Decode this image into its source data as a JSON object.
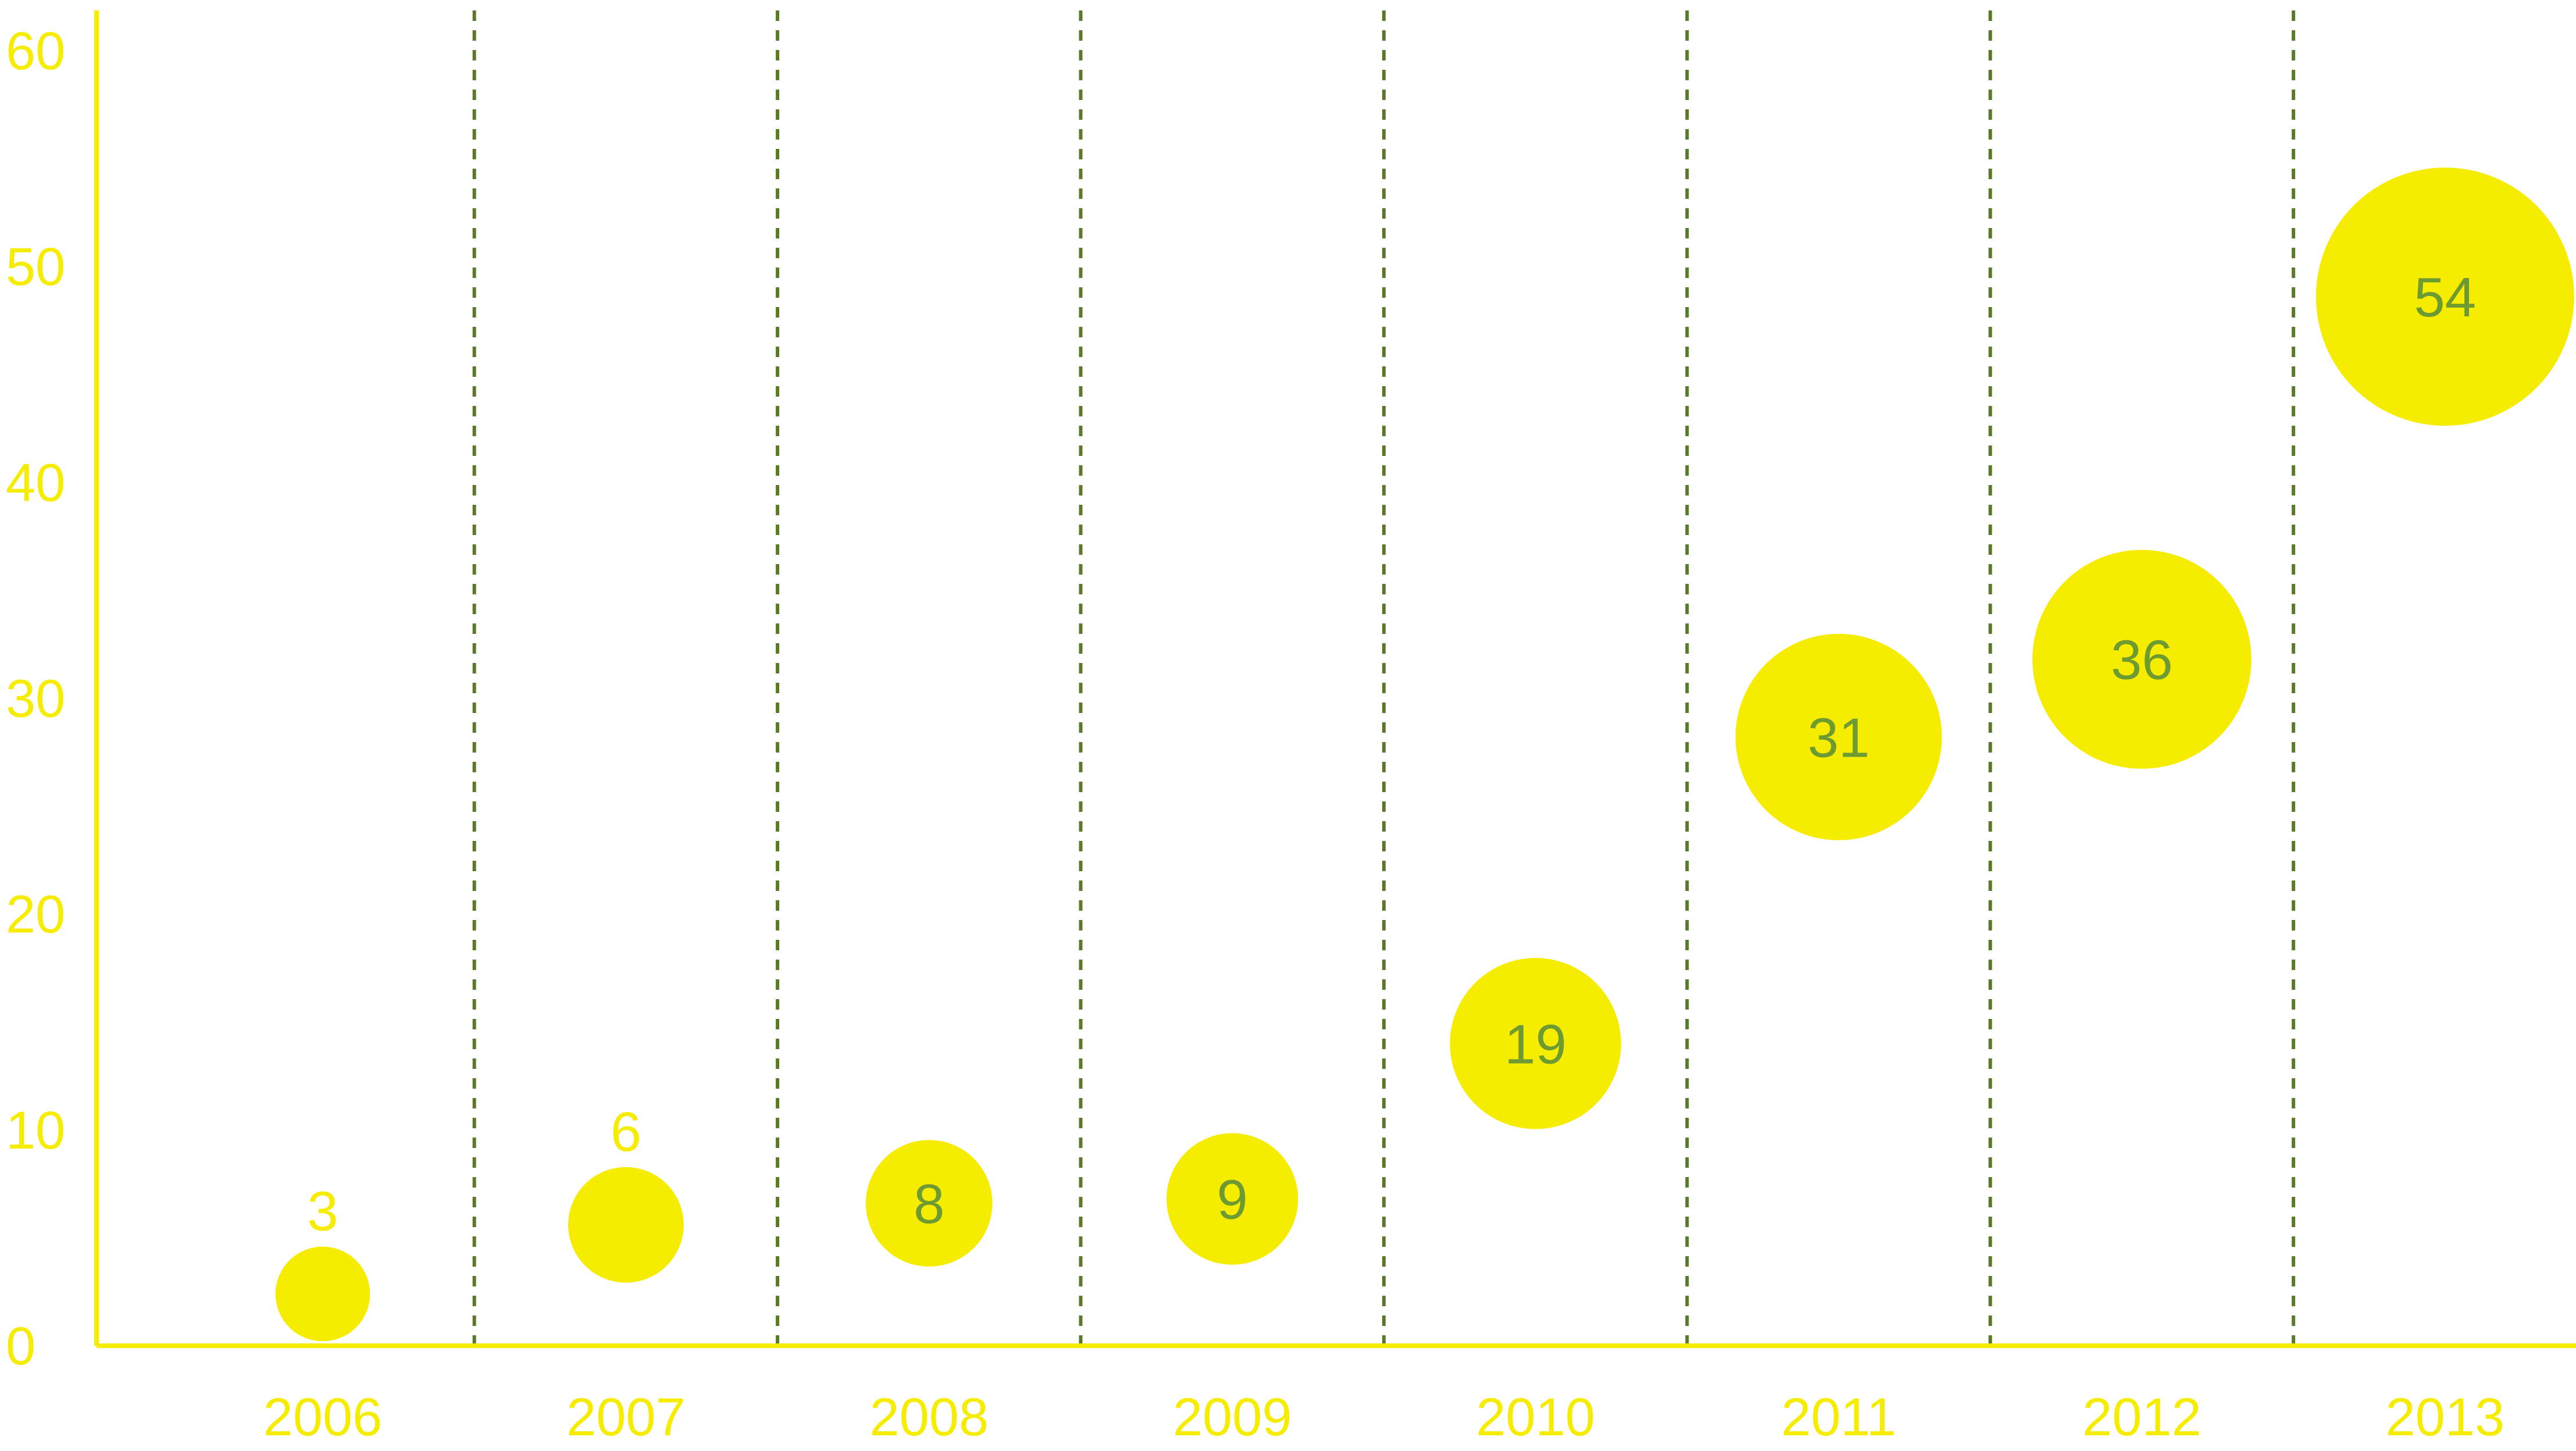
{
  "chart_data": {
    "type": "scatter",
    "title": "",
    "xlabel": "",
    "ylabel": "",
    "categories": [
      "2006",
      "2007",
      "2008",
      "2009",
      "2010",
      "2011",
      "2012",
      "2013"
    ],
    "series": [
      {
        "x": [
          "2006",
          "2007",
          "2008",
          "2009",
          "2010",
          "2011",
          "2012",
          "2013"
        ],
        "y": [
          2.4,
          5.6,
          6.6,
          6.8,
          14.0,
          28.2,
          31.8,
          48.6
        ],
        "size": [
          3,
          6,
          8,
          9,
          19,
          31,
          36,
          54
        ],
        "labels": [
          "3",
          "6",
          "8",
          "9",
          "19",
          "31",
          "36",
          "54"
        ]
      }
    ],
    "ylim": [
      0,
      60
    ],
    "yticks": [
      "0",
      "10",
      "20",
      "30",
      "40",
      "50",
      "60"
    ],
    "grid": "vertical dashed separators between years",
    "colors": {
      "bubble": "#F6EC00",
      "axis": "#F6EC00",
      "tick_text": "#F6EC00",
      "inside_label": "#6E9A32",
      "grid": "#5A7A2A"
    },
    "label_placement": {
      "above_bubble_for_sizes_lt": 8
    }
  }
}
